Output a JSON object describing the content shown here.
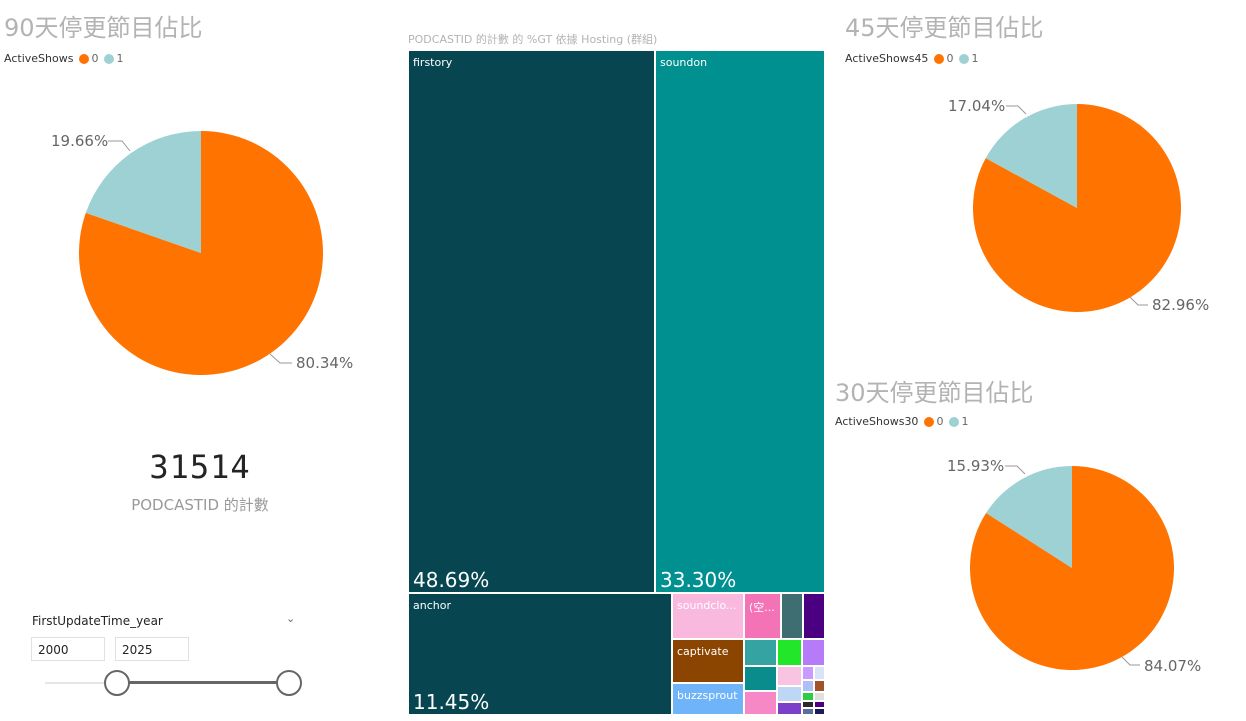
{
  "colors": {
    "inactive": "#FF7300",
    "active": "#9ED1D3"
  },
  "pie90": {
    "title": "90天停更節目佔比",
    "legend_label": "ActiveShows",
    "legend_items": [
      "0",
      "1"
    ],
    "slices": [
      80.34,
      19.66
    ],
    "labels": [
      "80.34%",
      "19.66%"
    ]
  },
  "pie45": {
    "title": "45天停更節目佔比",
    "legend_label": "ActiveShows45",
    "legend_items": [
      "0",
      "1"
    ],
    "slices": [
      82.96,
      17.04
    ],
    "labels": [
      "82.96%",
      "17.04%"
    ]
  },
  "pie30": {
    "title": "30天停更節目佔比",
    "legend_label": "ActiveShows30",
    "legend_items": [
      "0",
      "1"
    ],
    "slices": [
      84.07,
      15.93
    ],
    "labels": [
      "84.07%",
      "15.93%"
    ]
  },
  "card": {
    "value": "31514",
    "label": "PODCASTID 的計數"
  },
  "treemap": {
    "title": "PODCASTID 的計數 的 %GT 依據 Hosting (群組)",
    "items": [
      {
        "name": "firstory",
        "pct": "48.69%"
      },
      {
        "name": "soundon",
        "pct": "33.30%"
      },
      {
        "name": "anchor",
        "pct": "11.45%"
      },
      {
        "name": "soundclo...",
        "pct": ""
      },
      {
        "name": "(空...",
        "pct": ""
      },
      {
        "name": "captivate",
        "pct": ""
      },
      {
        "name": "buzzsprout",
        "pct": ""
      }
    ]
  },
  "slicer": {
    "title": "FirstUpdateTime_year",
    "from": "2000",
    "to": "2025"
  }
}
